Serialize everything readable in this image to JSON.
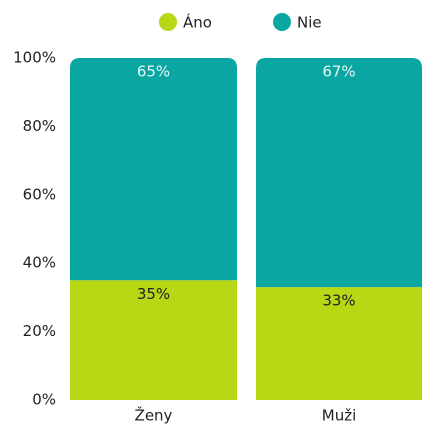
{
  "chart_data": {
    "type": "stacked_bar",
    "categories": [
      "Ženy",
      "Muži"
    ],
    "series": [
      {
        "name": "Áno",
        "color": "#b8d816",
        "values": [
          35,
          33
        ],
        "value_labels": [
          "35%",
          "33%"
        ],
        "label_color": "#222"
      },
      {
        "name": "Nie",
        "color": "#0aa6a2",
        "values": [
          65,
          67
        ],
        "value_labels": [
          "65%",
          "67%"
        ],
        "label_color": "#e8f6f6"
      }
    ],
    "ylim": [
      0,
      100
    ],
    "yticks": [
      {
        "value": 0,
        "label": "0%"
      },
      {
        "value": 20,
        "label": "20%"
      },
      {
        "value": 40,
        "label": "40%"
      },
      {
        "value": 60,
        "label": "60%"
      },
      {
        "value": 80,
        "label": "80%"
      },
      {
        "value": 100,
        "label": "100%"
      }
    ],
    "legend": "top"
  }
}
